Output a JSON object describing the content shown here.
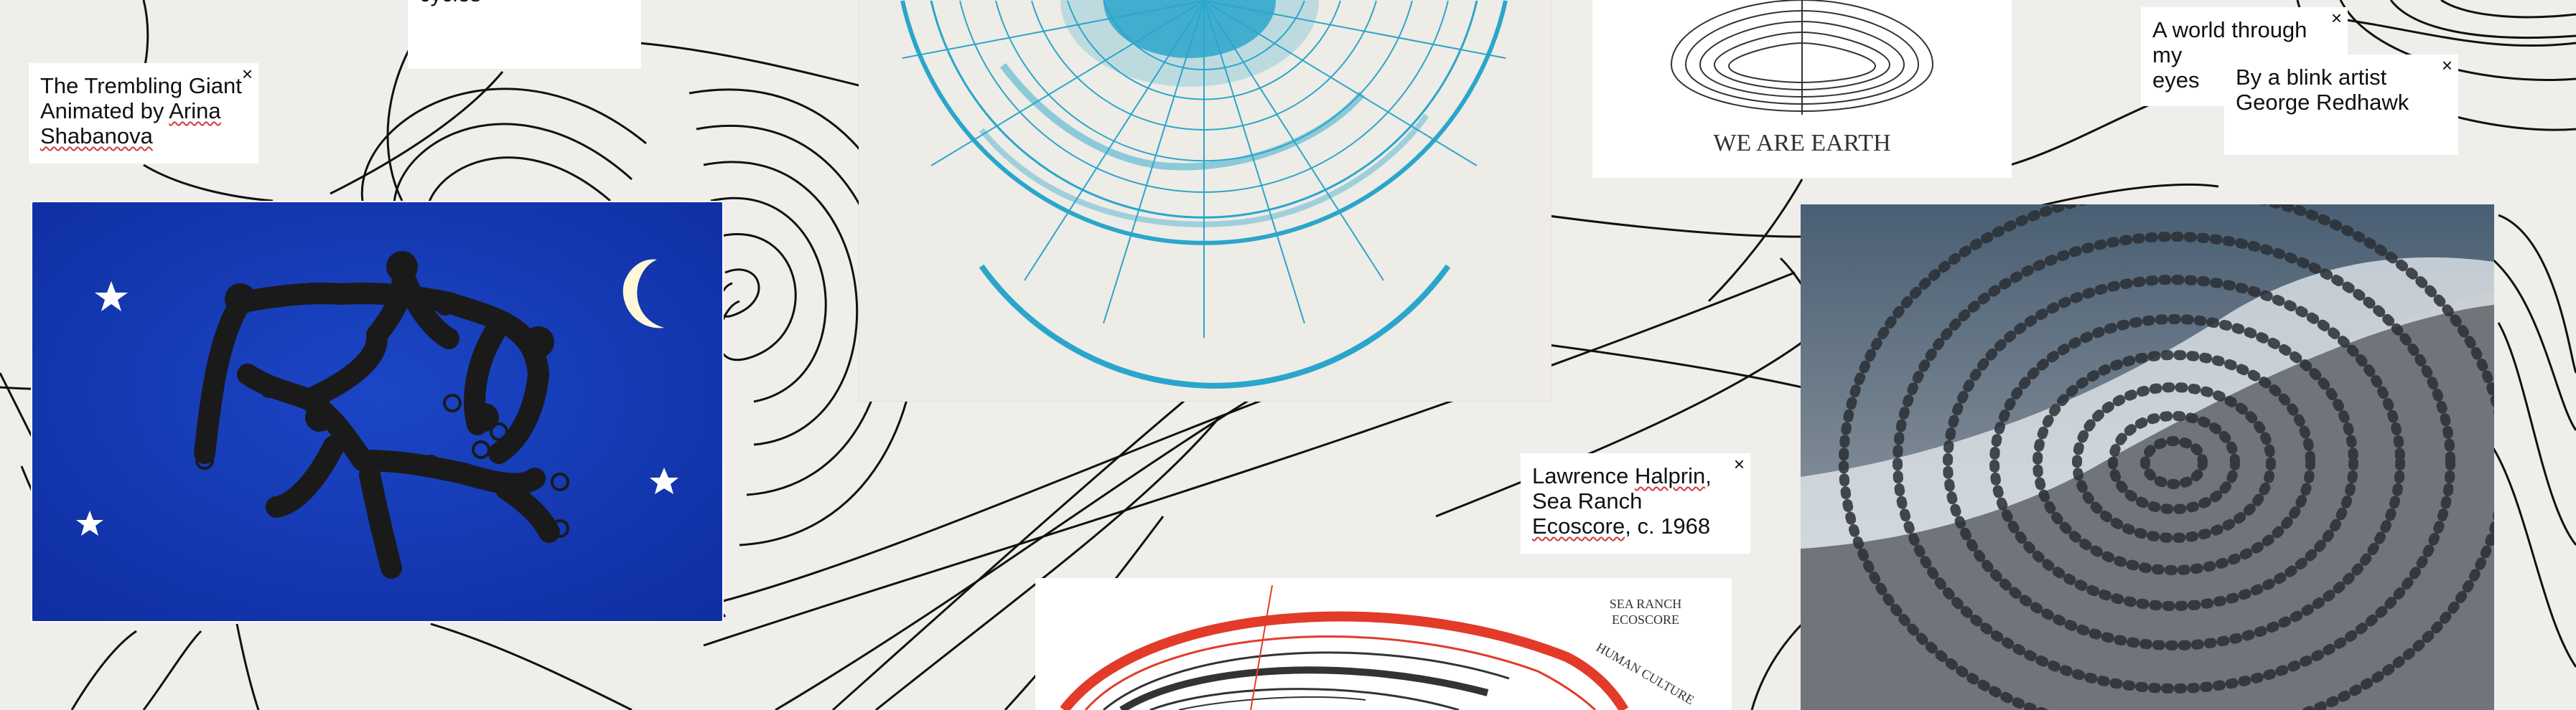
{
  "canvas": {
    "background": "#efeeea",
    "line_color": "#111111"
  },
  "notes": {
    "trembling": {
      "line1": "The Trembling Giant",
      "line2": "Animated by ",
      "line2b": "Arina",
      "line3": "Shabanova",
      "close": "×"
    },
    "cycles": {
      "text": "cycles"
    },
    "world": {
      "line1": "A world through my",
      "line2": "eyes",
      "close": "×"
    },
    "blink": {
      "line1": "By a blink artist",
      "line2": "George Redhawk",
      "close": "×"
    },
    "halprin": {
      "line1a": "Lawrence ",
      "line1b": "Halprin",
      "line1c": ",",
      "line2": "Sea Ranch",
      "line3a": "Ecoscore",
      "line3b": ", c. 1968",
      "close": "×"
    }
  },
  "images": {
    "giant": {
      "background": "#1638b0",
      "label": "Trembling Giant animation frame"
    },
    "galaxy": {
      "background": "#eeece6",
      "accent": "#2aa6cc"
    },
    "earth": {
      "caption": "WE ARE EARTH"
    },
    "stones": {
      "label": "Stone spiral on shore"
    },
    "ecoscore": {
      "title_line1": "SEA RANCH",
      "title_line2": "ECOSCORE",
      "arc_label": "HUMAN CULTURE",
      "accent": "#e23b2a"
    }
  }
}
